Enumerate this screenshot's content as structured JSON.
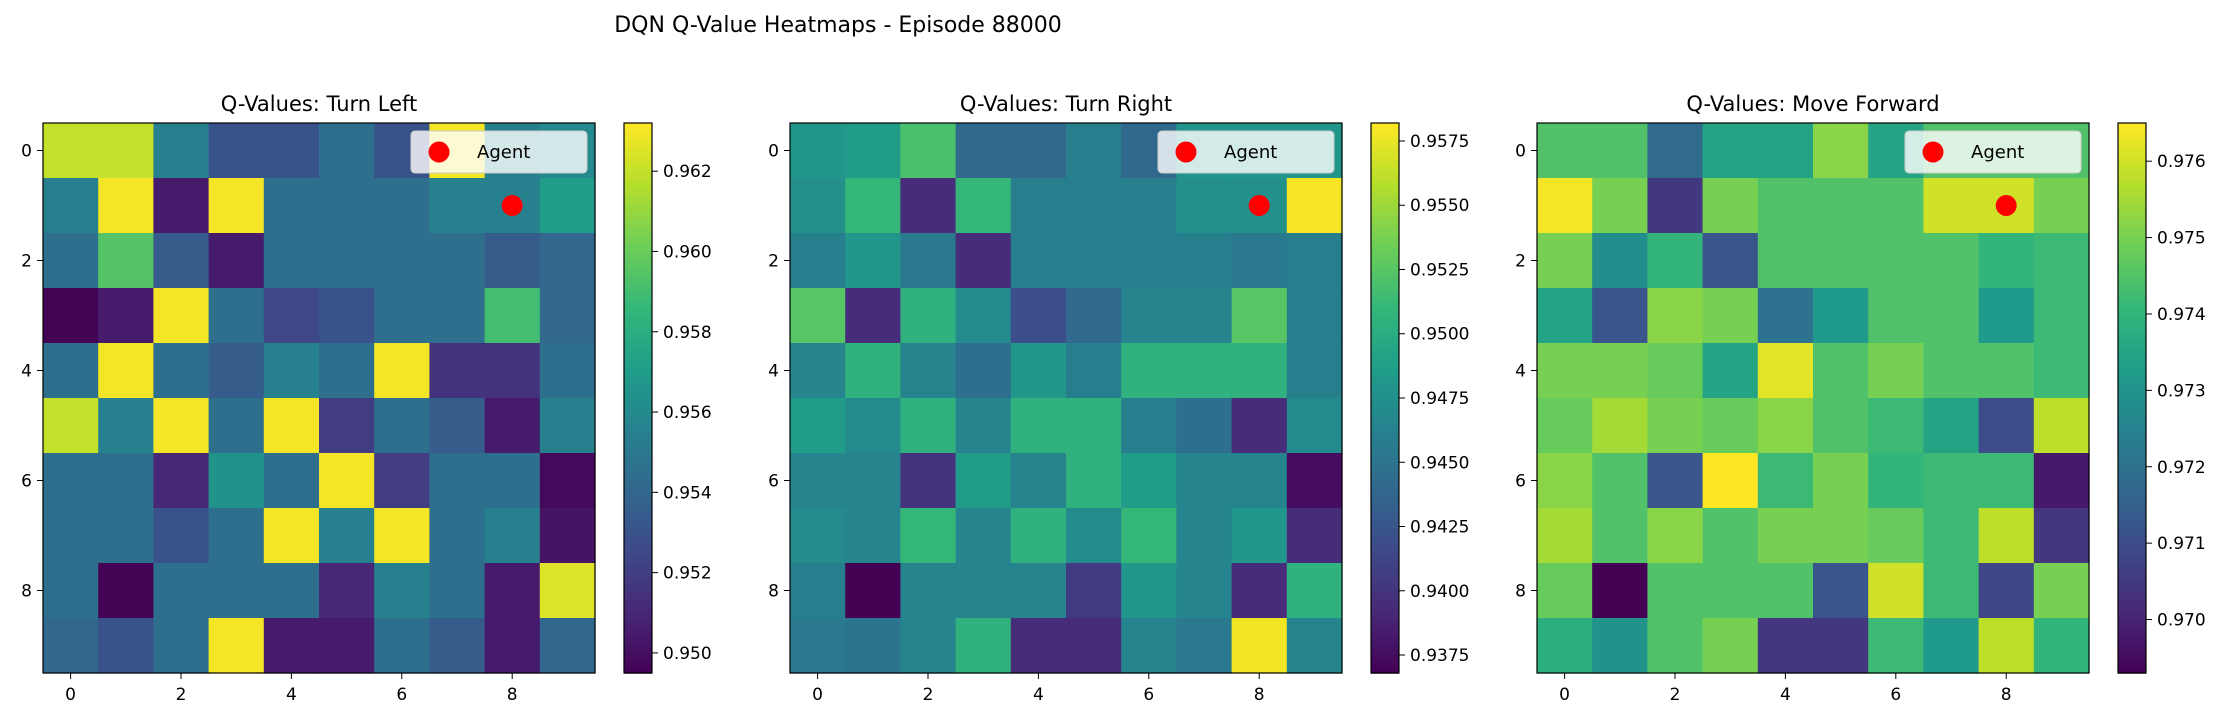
{
  "figure": {
    "suptitle": "DQN Q-Value Heatmaps - Episode 88000"
  },
  "chart_data": [
    {
      "type": "heatmap",
      "title": "Q-Values: Turn Left",
      "xlabel": "",
      "ylabel": "",
      "rows": 10,
      "cols": 10,
      "x_ticks": [
        0,
        2,
        4,
        6,
        8
      ],
      "y_ticks": [
        0,
        2,
        4,
        6,
        8
      ],
      "colorbar": {
        "min": 0.9495,
        "max": 0.9632,
        "ticks": [
          0.95,
          0.952,
          0.954,
          0.956,
          0.958,
          0.96,
          0.962
        ],
        "decimals": 3
      },
      "agent": {
        "x": 8,
        "y": 1,
        "label": "Agent",
        "color": "#ff0000"
      },
      "legend_position": "top-right",
      "values": [
        [
          0.962,
          0.962,
          0.9555,
          0.953,
          0.953,
          0.9545,
          0.953,
          0.963,
          0.9555,
          0.956
        ],
        [
          0.9555,
          0.963,
          0.9505,
          0.963,
          0.9545,
          0.9545,
          0.9545,
          0.9555,
          0.9555,
          0.957
        ],
        [
          0.9545,
          0.9595,
          0.9535,
          0.9505,
          0.9545,
          0.9545,
          0.9545,
          0.9545,
          0.9535,
          0.954
        ],
        [
          0.9496,
          0.9505,
          0.963,
          0.9545,
          0.9525,
          0.953,
          0.9545,
          0.9545,
          0.959,
          0.954
        ],
        [
          0.9545,
          0.963,
          0.9545,
          0.9535,
          0.9555,
          0.9545,
          0.963,
          0.9515,
          0.9515,
          0.9545
        ],
        [
          0.962,
          0.9555,
          0.963,
          0.9545,
          0.963,
          0.952,
          0.9545,
          0.9535,
          0.9505,
          0.9555
        ],
        [
          0.9545,
          0.9545,
          0.951,
          0.9565,
          0.9545,
          0.963,
          0.952,
          0.9545,
          0.9545,
          0.9498
        ],
        [
          0.9545,
          0.9545,
          0.953,
          0.9545,
          0.963,
          0.9555,
          0.963,
          0.9545,
          0.9555,
          0.9502
        ],
        [
          0.9545,
          0.9496,
          0.9545,
          0.9545,
          0.9545,
          0.951,
          0.9555,
          0.9545,
          0.9505,
          0.9625
        ],
        [
          0.954,
          0.953,
          0.9545,
          0.963,
          0.9505,
          0.9505,
          0.9545,
          0.9535,
          0.9505,
          0.954
        ]
      ]
    },
    {
      "type": "heatmap",
      "title": "Q-Values: Turn Right",
      "xlabel": "",
      "ylabel": "",
      "rows": 10,
      "cols": 10,
      "x_ticks": [
        0,
        2,
        4,
        6,
        8
      ],
      "y_ticks": [
        0,
        2,
        4,
        6,
        8
      ],
      "colorbar": {
        "min": 0.9368,
        "max": 0.9582,
        "ticks": [
          0.9375,
          0.94,
          0.9425,
          0.945,
          0.9475,
          0.95,
          0.9525,
          0.955,
          0.9575
        ],
        "decimals": 4
      },
      "agent": {
        "x": 8,
        "y": 1,
        "label": "Agent",
        "color": "#ff0000"
      },
      "legend_position": "top-right",
      "values": [
        [
          0.948,
          0.9485,
          0.952,
          0.944,
          0.944,
          0.946,
          0.944,
          0.948,
          0.948,
          0.948
        ],
        [
          0.9475,
          0.951,
          0.9395,
          0.951,
          0.946,
          0.946,
          0.946,
          0.9475,
          0.9475,
          0.958
        ],
        [
          0.946,
          0.948,
          0.9455,
          0.9395,
          0.946,
          0.946,
          0.946,
          0.946,
          0.9455,
          0.946
        ],
        [
          0.9525,
          0.9395,
          0.9505,
          0.947,
          0.942,
          0.944,
          0.9465,
          0.9465,
          0.9525,
          0.946
        ],
        [
          0.9465,
          0.9505,
          0.9465,
          0.9445,
          0.948,
          0.946,
          0.9505,
          0.9505,
          0.9505,
          0.946
        ],
        [
          0.9485,
          0.947,
          0.9505,
          0.9465,
          0.9505,
          0.9505,
          0.946,
          0.9445,
          0.9395,
          0.947
        ],
        [
          0.9465,
          0.9465,
          0.94,
          0.9485,
          0.9465,
          0.9505,
          0.9485,
          0.9465,
          0.9465,
          0.9375
        ],
        [
          0.947,
          0.9465,
          0.951,
          0.9465,
          0.9505,
          0.947,
          0.951,
          0.9465,
          0.948,
          0.9395
        ],
        [
          0.946,
          0.9368,
          0.9465,
          0.9465,
          0.9465,
          0.9405,
          0.948,
          0.9465,
          0.9395,
          0.9505
        ],
        [
          0.9455,
          0.945,
          0.9465,
          0.9505,
          0.9395,
          0.9395,
          0.9465,
          0.9455,
          0.9578,
          0.9465
        ]
      ]
    },
    {
      "type": "heatmap",
      "title": "Q-Values: Move Forward",
      "xlabel": "",
      "ylabel": "",
      "rows": 10,
      "cols": 10,
      "x_ticks": [
        0,
        2,
        4,
        6,
        8
      ],
      "y_ticks": [
        0,
        2,
        4,
        6,
        8
      ],
      "colorbar": {
        "min": 0.9693,
        "max": 0.9765,
        "ticks": [
          0.97,
          0.971,
          0.972,
          0.973,
          0.974,
          0.975,
          0.976
        ],
        "decimals": 3
      },
      "agent": {
        "x": 8,
        "y": 1,
        "label": "Agent",
        "color": "#ff0000"
      },
      "legend_position": "top-right",
      "values": [
        [
          0.9745,
          0.9745,
          0.9718,
          0.9735,
          0.9735,
          0.9752,
          0.9735,
          0.9745,
          0.9745,
          0.9745
        ],
        [
          0.9764,
          0.975,
          0.9705,
          0.975,
          0.9745,
          0.9745,
          0.9745,
          0.976,
          0.976,
          0.975
        ],
        [
          0.975,
          0.9728,
          0.974,
          0.9712,
          0.9745,
          0.9745,
          0.9745,
          0.9745,
          0.974,
          0.9742
        ],
        [
          0.9735,
          0.9712,
          0.9752,
          0.975,
          0.972,
          0.9732,
          0.9745,
          0.9745,
          0.9732,
          0.9742
        ],
        [
          0.975,
          0.975,
          0.9748,
          0.9735,
          0.9762,
          0.9745,
          0.975,
          0.9745,
          0.9745,
          0.9742
        ],
        [
          0.9748,
          0.9755,
          0.975,
          0.9748,
          0.9752,
          0.9745,
          0.9742,
          0.9735,
          0.971,
          0.9758
        ],
        [
          0.9752,
          0.9745,
          0.9712,
          0.9765,
          0.9742,
          0.975,
          0.974,
          0.9742,
          0.9742,
          0.9698
        ],
        [
          0.9755,
          0.9745,
          0.9752,
          0.9745,
          0.975,
          0.975,
          0.9748,
          0.9742,
          0.9758,
          0.9705
        ],
        [
          0.9748,
          0.9693,
          0.9745,
          0.9745,
          0.9745,
          0.9712,
          0.976,
          0.9742,
          0.9708,
          0.975
        ],
        [
          0.9738,
          0.973,
          0.9745,
          0.975,
          0.9705,
          0.9705,
          0.9742,
          0.9732,
          0.9758,
          0.974
        ]
      ]
    }
  ]
}
